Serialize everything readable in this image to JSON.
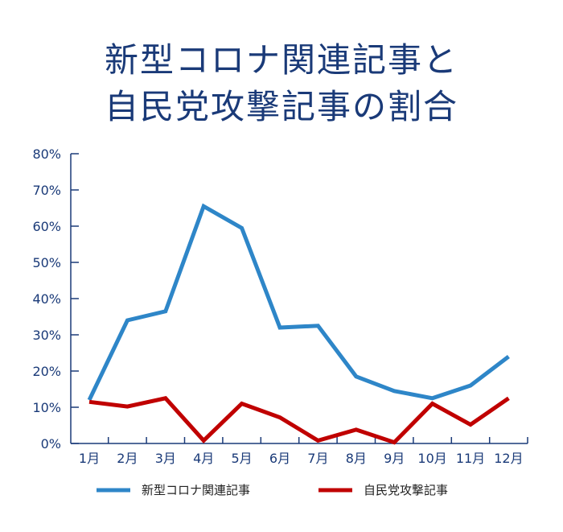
{
  "chart_data": {
    "type": "line",
    "title_lines": [
      "新型コロナ関連記事と",
      "自民党攻撃記事の割合"
    ],
    "categories": [
      "1月",
      "2月",
      "3月",
      "4月",
      "5月",
      "6月",
      "7月",
      "8月",
      "9月",
      "10月",
      "11月",
      "12月"
    ],
    "y_ticks": [
      "0%",
      "10%",
      "20%",
      "30%",
      "40%",
      "50%",
      "60%",
      "70%",
      "80%"
    ],
    "ylim": [
      0,
      80
    ],
    "y_unit": "%",
    "grid": false,
    "legend_position": "bottom",
    "series": [
      {
        "name": "新型コロナ関連記事",
        "color": "#2e86c8",
        "values": [
          12,
          34,
          36.5,
          65.5,
          59.5,
          32,
          32.5,
          18.5,
          14.5,
          12.5,
          16,
          24
        ]
      },
      {
        "name": "自民党攻撃記事",
        "color": "#c00000",
        "values": [
          11.5,
          10.2,
          12.5,
          0.8,
          11,
          7.2,
          0.8,
          3.8,
          0.3,
          11,
          5.2,
          12.5
        ]
      }
    ]
  }
}
